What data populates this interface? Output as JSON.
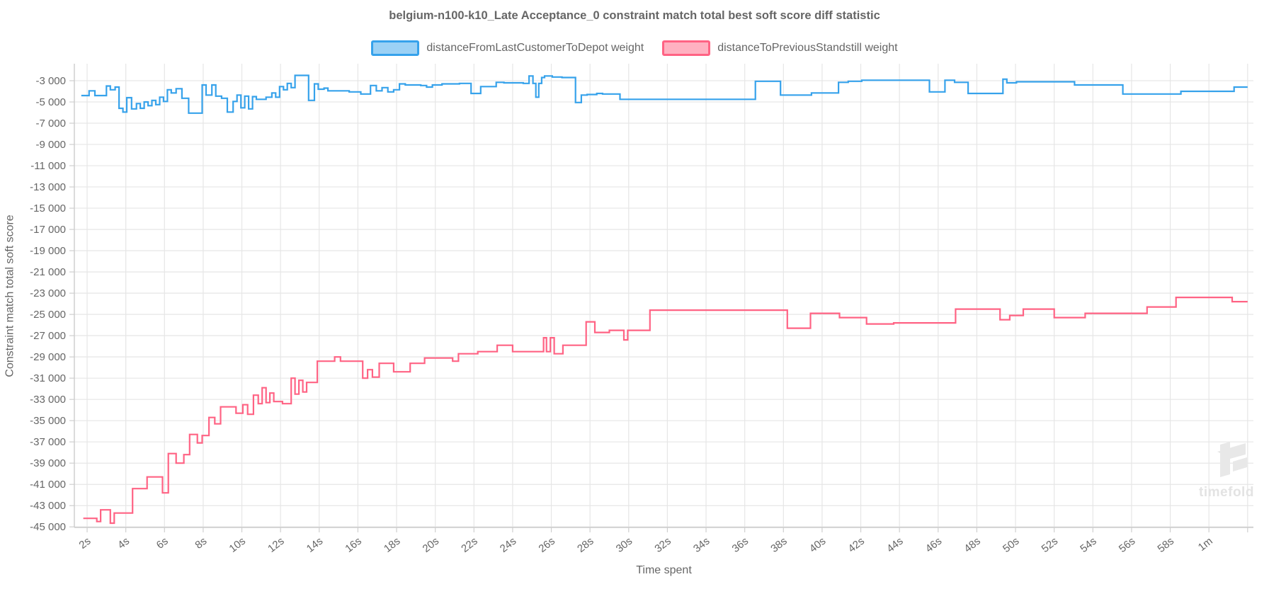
{
  "title": {
    "text": "belgium-n100-k10_Late Acceptance_0 constraint match total best soft score diff statistic"
  },
  "legend": {
    "items": [
      {
        "label": "distanceFromLastCustomerToDepot weight",
        "line_color": "#36a2eb",
        "fill_color": "#9bd1f5"
      },
      {
        "label": "distanceToPreviousStandstill weight",
        "line_color": "#ff6384",
        "fill_color": "#ffb1c1"
      }
    ]
  },
  "axes": {
    "x": {
      "title": "Time spent",
      "tick_values": [
        2,
        4,
        6,
        8,
        10,
        12,
        14,
        16,
        18,
        20,
        22,
        24,
        26,
        28,
        30,
        32,
        34,
        36,
        38,
        40,
        42,
        44,
        46,
        48,
        50,
        52,
        54,
        56,
        58,
        60
      ],
      "tick_labels": [
        "2s",
        "4s",
        "6s",
        "8s",
        "10s",
        "12s",
        "14s",
        "16s",
        "18s",
        "20s",
        "22s",
        "24s",
        "26s",
        "28s",
        "30s",
        "32s",
        "34s",
        "36s",
        "38s",
        "40s",
        "42s",
        "44s",
        "46s",
        "48s",
        "50s",
        "52s",
        "54s",
        "56s",
        "58s",
        "1m"
      ]
    },
    "y": {
      "title": "Constraint match total soft score",
      "tick_values": [
        -3000,
        -5000,
        -7000,
        -9000,
        -11000,
        -13000,
        -15000,
        -17000,
        -19000,
        -21000,
        -23000,
        -25000,
        -27000,
        -29000,
        -31000,
        -33000,
        -35000,
        -37000,
        -39000,
        -41000,
        -43000,
        -45000
      ],
      "tick_labels": [
        "-3 000",
        "-5 000",
        "-7 000",
        "-9 000",
        "-11 000",
        "-13 000",
        "-15 000",
        "-17 000",
        "-19 000",
        "-21 000",
        "-23 000",
        "-25 000",
        "-27 000",
        "-29 000",
        "-31 000",
        "-33 000",
        "-35 000",
        "-37 000",
        "-39 000",
        "-41 000",
        "-43 000",
        "-45 000"
      ]
    }
  },
  "watermark": {
    "text": "timefold"
  },
  "colors": {
    "grid": "#e6e6e6",
    "axis_border": "#cccccc",
    "tick_mark": "#cfcfcf",
    "tick_text": "#666666",
    "watermark": "#e8e8e8"
  },
  "chart_data": {
    "type": "line",
    "step": "after",
    "title": "belgium-n100-k10_Late Acceptance_0 constraint match total best soft score diff statistic",
    "xlabel": "Time spent",
    "ylabel": "Constraint match total soft score",
    "x_unit": "seconds",
    "x_range": [
      1.34,
      62.3
    ],
    "y_range": [
      -45050,
      -1400
    ],
    "grid": true,
    "legend_position": "top",
    "series": [
      {
        "name": "distanceFromLastCustomerToDepot weight",
        "color": "#36a2eb",
        "points": [
          [
            1.7,
            -4400
          ],
          [
            2.1,
            -3950
          ],
          [
            2.4,
            -4400
          ],
          [
            3.0,
            -3500
          ],
          [
            3.2,
            -3850
          ],
          [
            3.45,
            -3600
          ],
          [
            3.65,
            -5600
          ],
          [
            3.85,
            -5950
          ],
          [
            4.05,
            -4600
          ],
          [
            4.3,
            -5650
          ],
          [
            4.55,
            -5150
          ],
          [
            4.75,
            -5600
          ],
          [
            4.95,
            -5000
          ],
          [
            5.15,
            -5350
          ],
          [
            5.35,
            -4850
          ],
          [
            5.55,
            -5250
          ],
          [
            5.75,
            -4550
          ],
          [
            5.95,
            -4950
          ],
          [
            6.15,
            -3850
          ],
          [
            6.35,
            -4150
          ],
          [
            6.6,
            -3750
          ],
          [
            6.9,
            -4650
          ],
          [
            7.25,
            -6050
          ],
          [
            7.95,
            -3400
          ],
          [
            8.15,
            -4350
          ],
          [
            8.45,
            -3400
          ],
          [
            8.65,
            -4450
          ],
          [
            8.95,
            -4650
          ],
          [
            9.25,
            -5950
          ],
          [
            9.55,
            -4950
          ],
          [
            9.75,
            -4350
          ],
          [
            9.95,
            -5550
          ],
          [
            10.15,
            -4450
          ],
          [
            10.35,
            -5650
          ],
          [
            10.55,
            -4500
          ],
          [
            10.75,
            -4750
          ],
          [
            11.25,
            -4550
          ],
          [
            11.55,
            -4150
          ],
          [
            11.75,
            -4550
          ],
          [
            11.95,
            -3550
          ],
          [
            12.15,
            -3850
          ],
          [
            12.35,
            -3250
          ],
          [
            12.55,
            -3650
          ],
          [
            12.75,
            -2500
          ],
          [
            13.45,
            -4850
          ],
          [
            13.75,
            -3300
          ],
          [
            13.95,
            -3800
          ],
          [
            14.25,
            -3700
          ],
          [
            14.45,
            -3950
          ],
          [
            15.55,
            -4050
          ],
          [
            16.15,
            -4250
          ],
          [
            16.65,
            -3450
          ],
          [
            16.95,
            -3950
          ],
          [
            17.25,
            -3650
          ],
          [
            17.55,
            -4050
          ],
          [
            17.85,
            -3850
          ],
          [
            18.15,
            -3300
          ],
          [
            18.45,
            -3400
          ],
          [
            19.25,
            -3450
          ],
          [
            19.55,
            -3600
          ],
          [
            19.85,
            -3400
          ],
          [
            20.35,
            -3300
          ],
          [
            21.25,
            -3250
          ],
          [
            21.85,
            -4200
          ],
          [
            22.35,
            -3550
          ],
          [
            23.15,
            -3150
          ],
          [
            23.55,
            -3200
          ],
          [
            24.55,
            -3250
          ],
          [
            24.85,
            -2550
          ],
          [
            25.05,
            -3250
          ],
          [
            25.2,
            -4550
          ],
          [
            25.35,
            -3250
          ],
          [
            25.5,
            -2700
          ],
          [
            25.65,
            -2550
          ],
          [
            26.05,
            -2650
          ],
          [
            26.55,
            -2700
          ],
          [
            27.25,
            -5050
          ],
          [
            27.55,
            -4350
          ],
          [
            27.85,
            -4300
          ],
          [
            28.35,
            -4200
          ],
          [
            28.65,
            -4250
          ],
          [
            29.55,
            -4750
          ],
          [
            36.55,
            -3050
          ],
          [
            37.85,
            -4350
          ],
          [
            39.45,
            -4150
          ],
          [
            40.85,
            -3150
          ],
          [
            41.35,
            -3050
          ],
          [
            42.05,
            -2950
          ],
          [
            45.55,
            -4050
          ],
          [
            46.35,
            -2950
          ],
          [
            46.85,
            -3150
          ],
          [
            47.55,
            -4200
          ],
          [
            49.35,
            -2850
          ],
          [
            49.55,
            -3200
          ],
          [
            50.05,
            -3100
          ],
          [
            53.05,
            -3400
          ],
          [
            55.55,
            -4250
          ],
          [
            58.55,
            -4000
          ],
          [
            61.3,
            -3600
          ]
        ]
      },
      {
        "name": "distanceToPreviousStandstill weight",
        "color": "#ff6384",
        "points": [
          [
            1.8,
            -44200
          ],
          [
            2.5,
            -44500
          ],
          [
            2.7,
            -43400
          ],
          [
            3.2,
            -44650
          ],
          [
            3.4,
            -43700
          ],
          [
            4.35,
            -41400
          ],
          [
            5.1,
            -40300
          ],
          [
            5.9,
            -41800
          ],
          [
            6.2,
            -38100
          ],
          [
            6.6,
            -39000
          ],
          [
            7.0,
            -38200
          ],
          [
            7.3,
            -36300
          ],
          [
            7.7,
            -37100
          ],
          [
            7.95,
            -36400
          ],
          [
            8.3,
            -34700
          ],
          [
            8.6,
            -35300
          ],
          [
            8.9,
            -33700
          ],
          [
            9.7,
            -34300
          ],
          [
            10.05,
            -33500
          ],
          [
            10.3,
            -34400
          ],
          [
            10.6,
            -32600
          ],
          [
            10.85,
            -33400
          ],
          [
            11.05,
            -31900
          ],
          [
            11.25,
            -33300
          ],
          [
            11.45,
            -32400
          ],
          [
            11.65,
            -33200
          ],
          [
            12.1,
            -33400
          ],
          [
            12.55,
            -31000
          ],
          [
            12.75,
            -32500
          ],
          [
            12.95,
            -31200
          ],
          [
            13.15,
            -32300
          ],
          [
            13.35,
            -31400
          ],
          [
            13.9,
            -29400
          ],
          [
            14.8,
            -29000
          ],
          [
            15.1,
            -29400
          ],
          [
            16.25,
            -31000
          ],
          [
            16.5,
            -30200
          ],
          [
            16.75,
            -30900
          ],
          [
            17.1,
            -29600
          ],
          [
            17.85,
            -30400
          ],
          [
            18.7,
            -29600
          ],
          [
            19.45,
            -29100
          ],
          [
            20.9,
            -29400
          ],
          [
            21.2,
            -28700
          ],
          [
            22.2,
            -28500
          ],
          [
            23.2,
            -27900
          ],
          [
            24.0,
            -28500
          ],
          [
            25.6,
            -27200
          ],
          [
            25.75,
            -28500
          ],
          [
            25.95,
            -27200
          ],
          [
            26.15,
            -28700
          ],
          [
            26.6,
            -27900
          ],
          [
            27.8,
            -25700
          ],
          [
            28.25,
            -26700
          ],
          [
            29.0,
            -26500
          ],
          [
            29.75,
            -27400
          ],
          [
            29.95,
            -26500
          ],
          [
            31.1,
            -24600
          ],
          [
            38.2,
            -26300
          ],
          [
            39.4,
            -24900
          ],
          [
            40.9,
            -25300
          ],
          [
            42.3,
            -25900
          ],
          [
            43.7,
            -25800
          ],
          [
            46.9,
            -24500
          ],
          [
            49.2,
            -25500
          ],
          [
            49.7,
            -25100
          ],
          [
            50.4,
            -24500
          ],
          [
            52.0,
            -25300
          ],
          [
            53.6,
            -24900
          ],
          [
            56.8,
            -24300
          ],
          [
            58.3,
            -23400
          ],
          [
            61.2,
            -23800
          ]
        ]
      }
    ]
  }
}
